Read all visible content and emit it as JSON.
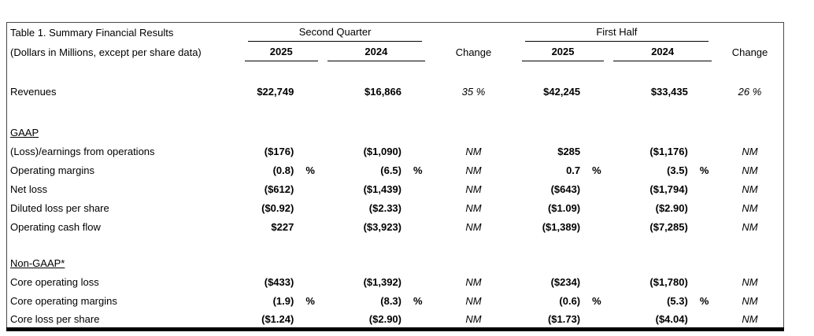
{
  "colors": {
    "background": "#ffffff",
    "text": "#000000",
    "border": "#000000"
  },
  "table": {
    "title": "Table 1. Summary Financial Results",
    "subtitle": "(Dollars in Millions, except per share data)",
    "groups": {
      "second_quarter": "Second Quarter",
      "first_half": "First Half"
    },
    "col_headers": {
      "sq_2025": "2025",
      "sq_2024": "2024",
      "sq_change": "Change",
      "fh_2025": "2025",
      "fh_2024": "2024",
      "fh_change": "Change"
    },
    "rows": [
      {
        "type": "spacer",
        "size": "md"
      },
      {
        "type": "data",
        "cells": {
          "label": "Revenues",
          "sq25": "$22,749",
          "sq25p": "",
          "sq24": "$16,866",
          "sq24p": "",
          "sqchg": "35 %",
          "fh25": "$42,245",
          "fh25p": "",
          "fh24": "$33,435",
          "fh24p": "",
          "fhchg": "26 %"
        }
      },
      {
        "type": "spacer",
        "size": "lg"
      },
      {
        "type": "section",
        "label": "GAAP"
      },
      {
        "type": "data",
        "cells": {
          "label": "(Loss)/earnings from operations",
          "sq25": "($176)",
          "sq25p": "",
          "sq24": "($1,090)",
          "sq24p": "",
          "sqchg": "NM",
          "fh25": "$285",
          "fh25p": "",
          "fh24": "($1,176)",
          "fh24p": "",
          "fhchg": "NM"
        }
      },
      {
        "type": "data",
        "cells": {
          "label": "Operating margins",
          "sq25": "(0.8)",
          "sq25p": "%",
          "sq24": "(6.5)",
          "sq24p": "%",
          "sqchg": "NM",
          "fh25": "0.7",
          "fh25p": "%",
          "fh24": "(3.5)",
          "fh24p": "%",
          "fhchg": "NM"
        }
      },
      {
        "type": "data",
        "cells": {
          "label": "Net loss",
          "sq25": "($612)",
          "sq25p": "",
          "sq24": "($1,439)",
          "sq24p": "",
          "sqchg": "NM",
          "fh25": "($643)",
          "fh25p": "",
          "fh24": "($1,794)",
          "fh24p": "",
          "fhchg": "NM"
        }
      },
      {
        "type": "data",
        "cells": {
          "label": "Diluted loss per share",
          "sq25": "($0.92)",
          "sq25p": "",
          "sq24": "($2.33)",
          "sq24p": "",
          "sqchg": "NM",
          "fh25": "($1.09)",
          "fh25p": "",
          "fh24": "($2.90)",
          "fh24p": "",
          "fhchg": "NM"
        }
      },
      {
        "type": "data",
        "cells": {
          "label": "Operating cash flow",
          "sq25": "$227",
          "sq25p": "",
          "sq24": "($3,923)",
          "sq24p": "",
          "sqchg": "NM",
          "fh25": "($1,389)",
          "fh25p": "",
          "fh24": "($7,285)",
          "fh24p": "",
          "fhchg": "NM"
        }
      },
      {
        "type": "spacer",
        "size": "sm"
      },
      {
        "type": "section",
        "label": "Non-GAAP*"
      },
      {
        "type": "data",
        "cells": {
          "label": "Core operating loss",
          "sq25": "($433)",
          "sq25p": "",
          "sq24": "($1,392)",
          "sq24p": "",
          "sqchg": "NM",
          "fh25": "($234)",
          "fh25p": "",
          "fh24": "($1,780)",
          "fh24p": "",
          "fhchg": "NM"
        }
      },
      {
        "type": "data",
        "cells": {
          "label": "Core operating margins",
          "sq25": "(1.9)",
          "sq25p": "%",
          "sq24": "(8.3)",
          "sq24p": "%",
          "sqchg": "NM",
          "fh25": "(0.6)",
          "fh25p": "%",
          "fh24": "(5.3)",
          "fh24p": "%",
          "fhchg": "NM"
        }
      },
      {
        "type": "data",
        "cells": {
          "label": "Core loss per share",
          "sq25": "($1.24)",
          "sq25p": "",
          "sq24": "($2.90)",
          "sq24p": "",
          "sqchg": "NM",
          "fh25": "($1.73)",
          "fh25p": "",
          "fh24": "($4.04)",
          "fh24p": "",
          "fhchg": "NM"
        }
      }
    ]
  }
}
